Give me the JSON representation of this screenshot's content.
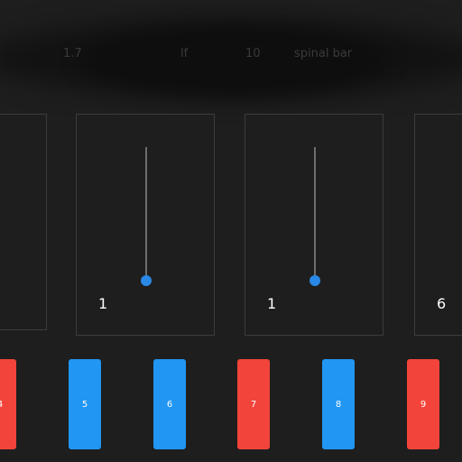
{
  "colors": {
    "background": "#1e1e1e",
    "panel_border": "#3c3c3c",
    "slider_track": "#6d6d6d",
    "slider_thumb": "#2a88e6",
    "key_red": "#f2443a",
    "key_blue": "#2196f3"
  },
  "header": {
    "blurred_texts": [
      "1.7",
      "lf",
      "10",
      "spinal bar"
    ]
  },
  "panels": [
    {
      "value": ""
    },
    {
      "value": "1"
    },
    {
      "value": "1"
    },
    {
      "value": "6"
    }
  ],
  "keys": [
    {
      "label": "4",
      "color": "red"
    },
    {
      "label": "5",
      "color": "blue"
    },
    {
      "label": "6",
      "color": "blue"
    },
    {
      "label": "7",
      "color": "red"
    },
    {
      "label": "8",
      "color": "blue"
    },
    {
      "label": "9",
      "color": "red"
    }
  ]
}
